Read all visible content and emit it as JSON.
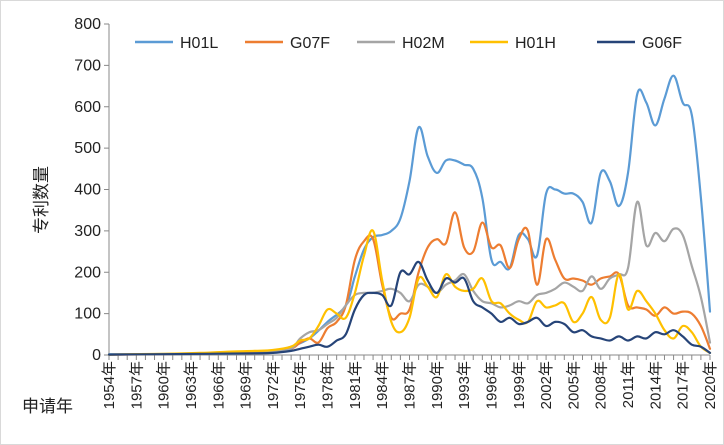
{
  "chart_data": {
    "type": "line",
    "ylabel": "专利数量",
    "xlabel": "申请年",
    "ylim": [
      0,
      800
    ],
    "yticks": [
      0,
      100,
      200,
      300,
      400,
      500,
      600,
      700,
      800
    ],
    "x_start": 1954,
    "x_end": 2020,
    "xtick_labels": [
      "1954年",
      "1957年",
      "1960年",
      "1963年",
      "1966年",
      "1969年",
      "1972年",
      "1975年",
      "1978年",
      "1981年",
      "1984年",
      "1987年",
      "1990年",
      "1993年",
      "1996年",
      "1999年",
      "2002年",
      "2005年",
      "2008年",
      "2011年",
      "2014年",
      "2017年",
      "2020年"
    ],
    "grid": false,
    "legend_position": "top",
    "series": [
      {
        "name": "H01L",
        "color": "#5B9BD5",
        "points": [
          [
            1954,
            2
          ],
          [
            1958,
            2
          ],
          [
            1961,
            3
          ],
          [
            1964,
            4
          ],
          [
            1967,
            3
          ],
          [
            1970,
            5
          ],
          [
            1972,
            8
          ],
          [
            1974,
            20
          ],
          [
            1976,
            40
          ],
          [
            1978,
            80
          ],
          [
            1980,
            120
          ],
          [
            1981,
            190
          ],
          [
            1982,
            255
          ],
          [
            1983,
            285
          ],
          [
            1984,
            290
          ],
          [
            1985,
            300
          ],
          [
            1986,
            330
          ],
          [
            1987,
            420
          ],
          [
            1988,
            550
          ],
          [
            1989,
            480
          ],
          [
            1990,
            440
          ],
          [
            1991,
            470
          ],
          [
            1992,
            470
          ],
          [
            1993,
            460
          ],
          [
            1994,
            450
          ],
          [
            1995,
            380
          ],
          [
            1996,
            230
          ],
          [
            1997,
            225
          ],
          [
            1998,
            210
          ],
          [
            1999,
            290
          ],
          [
            2000,
            280
          ],
          [
            2001,
            240
          ],
          [
            2002,
            390
          ],
          [
            2003,
            400
          ],
          [
            2004,
            390
          ],
          [
            2005,
            390
          ],
          [
            2006,
            370
          ],
          [
            2007,
            320
          ],
          [
            2008,
            440
          ],
          [
            2009,
            420
          ],
          [
            2010,
            360
          ],
          [
            2011,
            440
          ],
          [
            2012,
            630
          ],
          [
            2013,
            610
          ],
          [
            2014,
            555
          ],
          [
            2015,
            620
          ],
          [
            2016,
            675
          ],
          [
            2017,
            610
          ],
          [
            2018,
            580
          ],
          [
            2019,
            380
          ],
          [
            2020,
            105
          ]
        ]
      },
      {
        "name": "G07F",
        "color": "#ED7D31",
        "points": [
          [
            1954,
            1
          ],
          [
            1960,
            2
          ],
          [
            1965,
            4
          ],
          [
            1970,
            5
          ],
          [
            1972,
            10
          ],
          [
            1974,
            15
          ],
          [
            1975,
            30
          ],
          [
            1976,
            40
          ],
          [
            1977,
            30
          ],
          [
            1978,
            65
          ],
          [
            1979,
            80
          ],
          [
            1980,
            120
          ],
          [
            1981,
            230
          ],
          [
            1982,
            275
          ],
          [
            1983,
            280
          ],
          [
            1984,
            170
          ],
          [
            1985,
            90
          ],
          [
            1986,
            100
          ],
          [
            1987,
            110
          ],
          [
            1988,
            200
          ],
          [
            1989,
            260
          ],
          [
            1990,
            280
          ],
          [
            1991,
            270
          ],
          [
            1992,
            345
          ],
          [
            1993,
            260
          ],
          [
            1994,
            250
          ],
          [
            1995,
            320
          ],
          [
            1996,
            260
          ],
          [
            1997,
            265
          ],
          [
            1998,
            210
          ],
          [
            1999,
            280
          ],
          [
            2000,
            300
          ],
          [
            2001,
            170
          ],
          [
            2002,
            280
          ],
          [
            2003,
            230
          ],
          [
            2004,
            185
          ],
          [
            2005,
            185
          ],
          [
            2006,
            180
          ],
          [
            2007,
            170
          ],
          [
            2008,
            185
          ],
          [
            2009,
            190
          ],
          [
            2010,
            195
          ],
          [
            2011,
            120
          ],
          [
            2012,
            115
          ],
          [
            2013,
            110
          ],
          [
            2014,
            95
          ],
          [
            2015,
            115
          ],
          [
            2016,
            100
          ],
          [
            2017,
            105
          ],
          [
            2018,
            100
          ],
          [
            2019,
            70
          ],
          [
            2020,
            15
          ]
        ]
      },
      {
        "name": "H02M",
        "color": "#A5A5A5",
        "points": [
          [
            1954,
            1
          ],
          [
            1960,
            2
          ],
          [
            1965,
            3
          ],
          [
            1970,
            4
          ],
          [
            1972,
            8
          ],
          [
            1974,
            15
          ],
          [
            1975,
            40
          ],
          [
            1976,
            55
          ],
          [
            1977,
            60
          ],
          [
            1978,
            75
          ],
          [
            1979,
            90
          ],
          [
            1980,
            120
          ],
          [
            1981,
            145
          ],
          [
            1982,
            150
          ],
          [
            1983,
            150
          ],
          [
            1984,
            155
          ],
          [
            1985,
            160
          ],
          [
            1986,
            150
          ],
          [
            1987,
            130
          ],
          [
            1988,
            170
          ],
          [
            1989,
            165
          ],
          [
            1990,
            150
          ],
          [
            1991,
            170
          ],
          [
            1992,
            180
          ],
          [
            1993,
            195
          ],
          [
            1994,
            155
          ],
          [
            1995,
            130
          ],
          [
            1996,
            125
          ],
          [
            1997,
            115
          ],
          [
            1998,
            120
          ],
          [
            1999,
            130
          ],
          [
            2000,
            125
          ],
          [
            2001,
            145
          ],
          [
            2002,
            150
          ],
          [
            2003,
            160
          ],
          [
            2004,
            175
          ],
          [
            2005,
            165
          ],
          [
            2006,
            155
          ],
          [
            2007,
            190
          ],
          [
            2008,
            160
          ],
          [
            2009,
            185
          ],
          [
            2010,
            195
          ],
          [
            2011,
            210
          ],
          [
            2012,
            370
          ],
          [
            2013,
            265
          ],
          [
            2014,
            295
          ],
          [
            2015,
            275
          ],
          [
            2016,
            305
          ],
          [
            2017,
            290
          ],
          [
            2018,
            215
          ],
          [
            2019,
            140
          ],
          [
            2020,
            30
          ]
        ]
      },
      {
        "name": "H01H",
        "color": "#FFC000",
        "points": [
          [
            1954,
            1
          ],
          [
            1960,
            3
          ],
          [
            1964,
            5
          ],
          [
            1967,
            8
          ],
          [
            1970,
            10
          ],
          [
            1972,
            12
          ],
          [
            1974,
            20
          ],
          [
            1975,
            35
          ],
          [
            1976,
            40
          ],
          [
            1977,
            70
          ],
          [
            1978,
            110
          ],
          [
            1979,
            100
          ],
          [
            1980,
            90
          ],
          [
            1981,
            150
          ],
          [
            1982,
            240
          ],
          [
            1983,
            300
          ],
          [
            1984,
            180
          ],
          [
            1985,
            80
          ],
          [
            1986,
            55
          ],
          [
            1987,
            90
          ],
          [
            1988,
            185
          ],
          [
            1989,
            165
          ],
          [
            1990,
            140
          ],
          [
            1991,
            195
          ],
          [
            1992,
            165
          ],
          [
            1993,
            155
          ],
          [
            1994,
            160
          ],
          [
            1995,
            185
          ],
          [
            1996,
            130
          ],
          [
            1997,
            125
          ],
          [
            1998,
            100
          ],
          [
            1999,
            85
          ],
          [
            2000,
            80
          ],
          [
            2001,
            130
          ],
          [
            2002,
            115
          ],
          [
            2003,
            120
          ],
          [
            2004,
            125
          ],
          [
            2005,
            80
          ],
          [
            2006,
            100
          ],
          [
            2007,
            140
          ],
          [
            2008,
            85
          ],
          [
            2009,
            90
          ],
          [
            2010,
            195
          ],
          [
            2011,
            110
          ],
          [
            2012,
            155
          ],
          [
            2013,
            130
          ],
          [
            2014,
            100
          ],
          [
            2015,
            60
          ],
          [
            2016,
            40
          ],
          [
            2017,
            70
          ],
          [
            2018,
            55
          ],
          [
            2019,
            20
          ],
          [
            2020,
            5
          ]
        ]
      },
      {
        "name": "G06F",
        "color": "#264478",
        "points": [
          [
            1954,
            1
          ],
          [
            1960,
            2
          ],
          [
            1965,
            3
          ],
          [
            1970,
            4
          ],
          [
            1972,
            5
          ],
          [
            1974,
            10
          ],
          [
            1975,
            15
          ],
          [
            1976,
            20
          ],
          [
            1977,
            25
          ],
          [
            1978,
            20
          ],
          [
            1979,
            35
          ],
          [
            1980,
            50
          ],
          [
            1981,
            110
          ],
          [
            1982,
            145
          ],
          [
            1983,
            150
          ],
          [
            1984,
            145
          ],
          [
            1985,
            120
          ],
          [
            1986,
            200
          ],
          [
            1987,
            195
          ],
          [
            1988,
            225
          ],
          [
            1989,
            180
          ],
          [
            1990,
            150
          ],
          [
            1991,
            185
          ],
          [
            1992,
            175
          ],
          [
            1993,
            185
          ],
          [
            1994,
            130
          ],
          [
            1995,
            115
          ],
          [
            1996,
            100
          ],
          [
            1997,
            80
          ],
          [
            1998,
            90
          ],
          [
            1999,
            75
          ],
          [
            2000,
            80
          ],
          [
            2001,
            90
          ],
          [
            2002,
            70
          ],
          [
            2003,
            80
          ],
          [
            2004,
            75
          ],
          [
            2005,
            55
          ],
          [
            2006,
            60
          ],
          [
            2007,
            45
          ],
          [
            2008,
            40
          ],
          [
            2009,
            35
          ],
          [
            2010,
            45
          ],
          [
            2011,
            35
          ],
          [
            2012,
            45
          ],
          [
            2013,
            40
          ],
          [
            2014,
            55
          ],
          [
            2015,
            50
          ],
          [
            2016,
            60
          ],
          [
            2017,
            45
          ],
          [
            2018,
            25
          ],
          [
            2019,
            20
          ],
          [
            2020,
            5
          ]
        ]
      }
    ]
  }
}
